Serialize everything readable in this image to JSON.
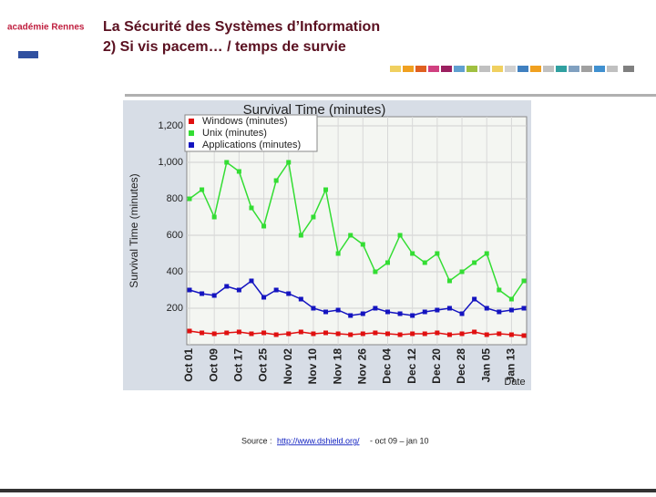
{
  "slide": {
    "logo": "académie Rennes",
    "title": "La Sécurité des Systèmes d’Information",
    "subtitle": "2) Si vis pacem… / temps de survie",
    "source_prefix": "Source : ",
    "source_link": "http://www.dshield.org/",
    "source_suffix": " - oct 09 – jan 10"
  },
  "chart_data": {
    "type": "line",
    "title": "Survival Time (minutes)",
    "y_label": "Survival Time (minutes)",
    "x_label": "Date",
    "categories": [
      "Oct 01",
      null,
      "Oct 09",
      null,
      "Oct 17",
      null,
      "Oct 25",
      null,
      "Nov 02",
      null,
      "Nov 10",
      null,
      "Nov 18",
      null,
      "Nov 26",
      null,
      "Dec 04",
      null,
      "Dec 12",
      null,
      "Dec 20",
      null,
      "Dec 28",
      null,
      "Jan 05",
      null,
      "Jan 13",
      null
    ],
    "series": [
      {
        "name": "Windows (minutes)",
        "color": "#e01010",
        "values": [
          75,
          65,
          60,
          65,
          70,
          60,
          65,
          55,
          60,
          70,
          60,
          65,
          60,
          55,
          60,
          65,
          60,
          55,
          60,
          60,
          65,
          55,
          60,
          70,
          55,
          60,
          55,
          50
        ]
      },
      {
        "name": "Unix (minutes)",
        "color": "#33dd33",
        "values": [
          800,
          850,
          700,
          1000,
          950,
          750,
          650,
          900,
          1000,
          600,
          700,
          850,
          500,
          600,
          550,
          400,
          450,
          600,
          500,
          450,
          500,
          350,
          400,
          450,
          500,
          300,
          250,
          350
        ]
      },
      {
        "name": "Applications (minutes)",
        "color": "#1414c0",
        "values": [
          300,
          280,
          270,
          320,
          300,
          350,
          260,
          300,
          280,
          250,
          200,
          180,
          190,
          160,
          170,
          200,
          180,
          170,
          160,
          180,
          190,
          200,
          170,
          250,
          200,
          180,
          190,
          200
        ]
      }
    ],
    "ylim": [
      0,
      1300
    ],
    "yticks": [
      200,
      400,
      600,
      800,
      {
        "value": 1000,
        "label": "1,000"
      },
      {
        "value": 1200,
        "label": "1,200"
      }
    ],
    "grid": true
  }
}
